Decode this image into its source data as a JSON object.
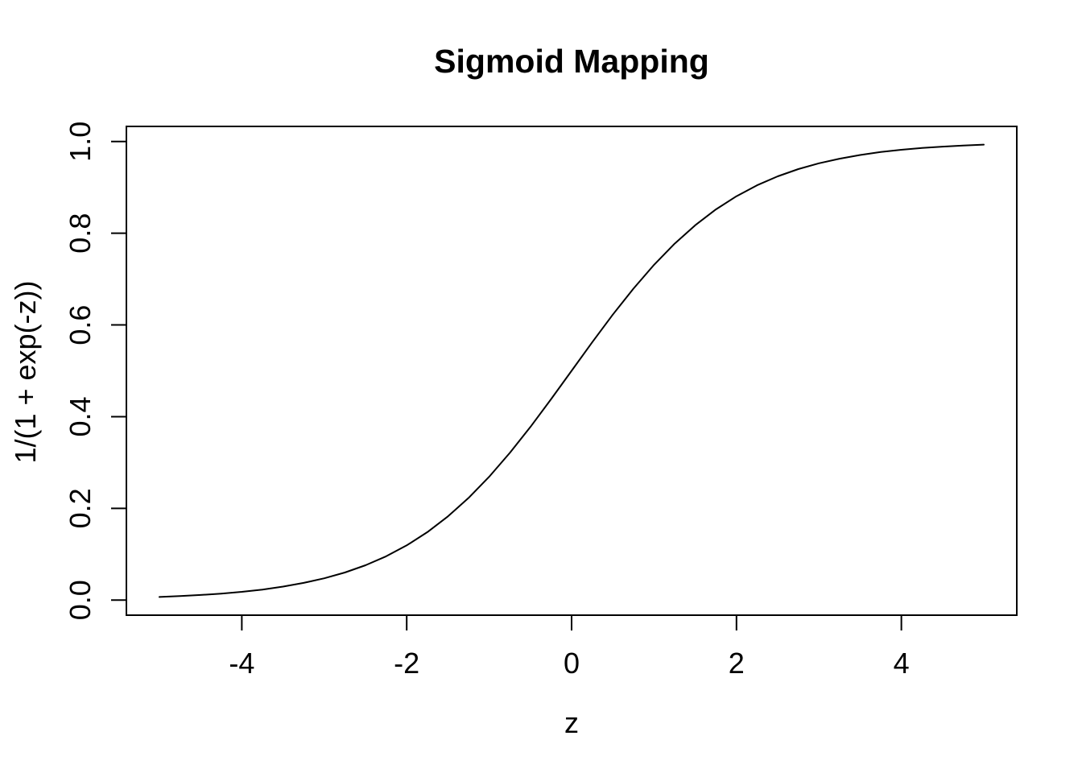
{
  "figure": {
    "background": "#ffffff",
    "foreground": "#000000"
  },
  "chart_data": {
    "type": "line",
    "title": "Sigmoid Mapping",
    "xlabel": "z",
    "ylabel": "1/(1 + exp(-z))",
    "curve_color": "#000000",
    "grid": false,
    "legend": "none",
    "xlim": [
      -5.4,
      5.4
    ],
    "ylim": [
      -0.033,
      1.033
    ],
    "x_ticks": {
      "values": [
        -4,
        -2,
        0,
        2,
        4
      ],
      "labels": [
        "-4",
        "-2",
        "0",
        "2",
        "4"
      ]
    },
    "y_ticks": {
      "values": [
        0.0,
        0.2,
        0.4,
        0.6,
        0.8,
        1.0
      ],
      "labels": [
        "0.0",
        "0.2",
        "0.4",
        "0.6",
        "0.8",
        "1.0"
      ]
    },
    "x": [
      -5,
      -4.75,
      -4.5,
      -4.25,
      -4,
      -3.75,
      -3.5,
      -3.25,
      -3,
      -2.75,
      -2.5,
      -2.25,
      -2,
      -1.75,
      -1.5,
      -1.25,
      -1,
      -0.75,
      -0.5,
      -0.25,
      0,
      0.25,
      0.5,
      0.75,
      1,
      1.25,
      1.5,
      1.75,
      2,
      2.25,
      2.5,
      2.75,
      3,
      3.25,
      3.5,
      3.75,
      4,
      4.25,
      4.5,
      4.75,
      5
    ],
    "y": [
      0.0067,
      0.0086,
      0.011,
      0.0141,
      0.018,
      0.0229,
      0.0293,
      0.0374,
      0.0474,
      0.0601,
      0.0759,
      0.0953,
      0.1192,
      0.148,
      0.1824,
      0.2227,
      0.2689,
      0.3208,
      0.3775,
      0.4378,
      0.5,
      0.5622,
      0.6225,
      0.6792,
      0.7311,
      0.7773,
      0.8176,
      0.852,
      0.8808,
      0.9047,
      0.9241,
      0.9399,
      0.9526,
      0.9626,
      0.9707,
      0.9771,
      0.982,
      0.9859,
      0.989,
      0.9914,
      0.9933
    ]
  }
}
